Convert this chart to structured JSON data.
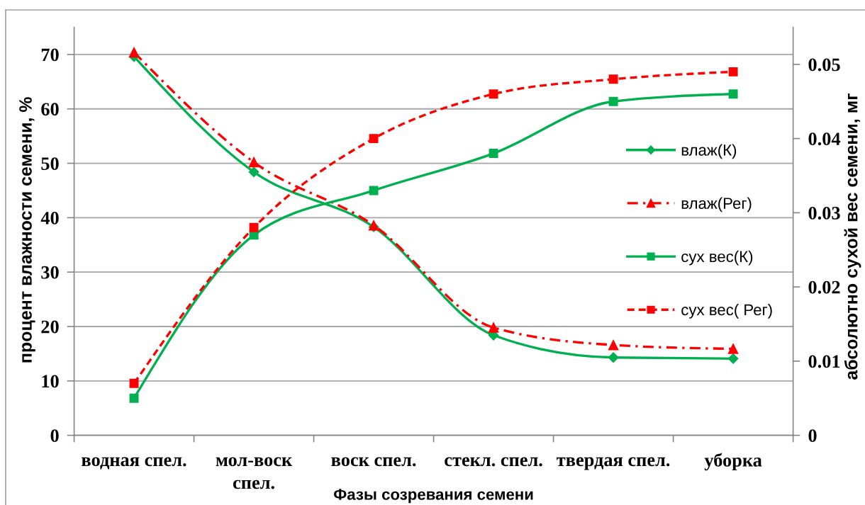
{
  "chart_data": {
    "type": "line",
    "xlabel": "Фазы созревания семени",
    "ylabel": "процент влажности семени, %",
    "y2label": "абсолютно сухой вес семени, мг",
    "categories": [
      "водная спел.",
      "мол-воск\nспел.",
      "воск спел.",
      "стекл. спел.",
      "твердая спел.",
      "уборка"
    ],
    "series": [
      {
        "name": "влаж(К)",
        "color": "#00b050",
        "marker": "diamond",
        "line_style": "solid",
        "values": [
          69.6,
          48.4,
          38.3,
          18.4,
          14.3,
          14.1
        ]
      },
      {
        "name": "влаж(Рег)",
        "color": "#ff0000",
        "marker": "triangle",
        "line_style": "dashdot",
        "values": [
          70.4,
          50.2,
          38.6,
          19.8,
          16.6,
          15.9
        ]
      },
      {
        "name": "сух вес(К)",
        "color": "#00b050",
        "marker": "square",
        "line_style": "solid",
        "axis": "y2",
        "values": [
          0.005,
          0.027,
          0.033,
          0.038,
          0.045,
          0.046
        ]
      },
      {
        "name": "сух вес( Рег)",
        "color": "#ff0000",
        "marker": "square",
        "line_style": "dashed",
        "axis": "y2",
        "values": [
          0.007,
          0.028,
          0.04,
          0.046,
          0.048,
          0.049
        ]
      }
    ],
    "ylim": [
      0,
      75
    ],
    "yticks": [
      0,
      10,
      20,
      30,
      40,
      50,
      60,
      70
    ],
    "y2lim": [
      0,
      0.055
    ],
    "y2ticks": [
      0,
      0.01,
      0.02,
      0.03,
      0.04,
      0.05
    ],
    "grid": "y",
    "legend": "right"
  }
}
